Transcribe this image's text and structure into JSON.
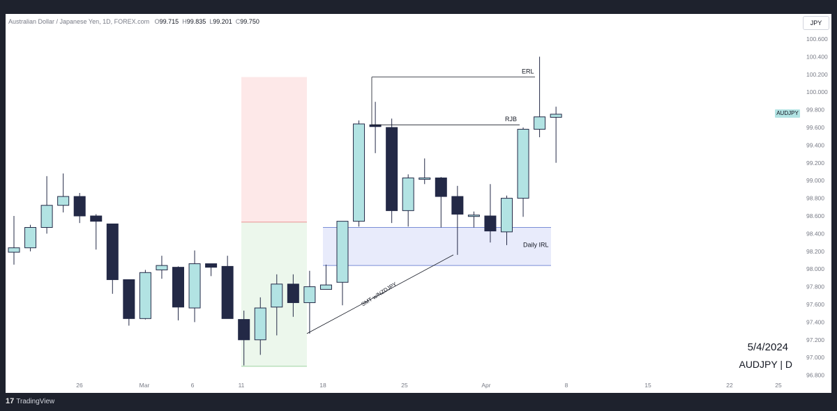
{
  "header": {
    "symbol_title": "Australian Dollar / Japanese Yen, 1D, FOREX.com",
    "open_label": "O",
    "open_value": "99.715",
    "high_label": "H",
    "high_value": "99.835",
    "low_label": "L",
    "low_value": "99.201",
    "close_label": "C",
    "close_value": "99.750"
  },
  "currency_button": "JPY",
  "last_price_tag": "AUDJPY",
  "watermark": {
    "date": "5/4/2024",
    "symbol": "AUDJPY | D"
  },
  "footer": {
    "brand_mark": "17",
    "brand": "TradingView"
  },
  "annotations": {
    "erl": "ERL",
    "rjb": "RJB",
    "daily_irl": "Daily IRL",
    "smt": "SMT w/NZDJPY"
  },
  "colors": {
    "bull_fill": "#b2e3e3",
    "bear_fill": "#232946",
    "candle_border": "#232946",
    "supply_zone": "#fde8e8",
    "demand_zone": "#ecf7ec",
    "irl_zone": "#e8ebfb",
    "irl_border": "#7b8ed6"
  },
  "chart_data": {
    "type": "candlestick",
    "y_axis_ticks": [
      "100.600",
      "100.400",
      "100.200",
      "100.000",
      "99.800",
      "99.600",
      "99.400",
      "99.200",
      "99.000",
      "98.800",
      "98.600",
      "98.400",
      "98.200",
      "98.000",
      "97.800",
      "97.600",
      "97.400",
      "97.200",
      "97.000",
      "96.800"
    ],
    "x_axis_ticks": [
      "26",
      "Mar",
      "6",
      "11",
      "18",
      "25",
      "Apr",
      "8",
      "15",
      "22",
      "25"
    ],
    "ylim": [
      96.75,
      100.75
    ],
    "candles": [
      {
        "o": 98.19,
        "h": 98.6,
        "l": 98.05,
        "c": 98.24
      },
      {
        "o": 98.24,
        "h": 98.5,
        "l": 98.2,
        "c": 98.47
      },
      {
        "o": 98.47,
        "h": 99.05,
        "l": 98.4,
        "c": 98.72
      },
      {
        "o": 98.72,
        "h": 99.08,
        "l": 98.64,
        "c": 98.82
      },
      {
        "o": 98.82,
        "h": 98.86,
        "l": 98.52,
        "c": 98.6
      },
      {
        "o": 98.6,
        "h": 98.62,
        "l": 98.22,
        "c": 98.54
      },
      {
        "o": 98.51,
        "h": 98.51,
        "l": 97.72,
        "c": 97.88
      },
      {
        "o": 97.88,
        "h": 97.88,
        "l": 97.36,
        "c": 97.44
      },
      {
        "o": 97.44,
        "h": 97.99,
        "l": 97.43,
        "c": 97.96
      },
      {
        "o": 97.99,
        "h": 98.15,
        "l": 97.89,
        "c": 98.04
      },
      {
        "o": 98.02,
        "h": 98.03,
        "l": 97.42,
        "c": 97.57
      },
      {
        "o": 97.56,
        "h": 98.21,
        "l": 97.4,
        "c": 98.06
      },
      {
        "o": 98.06,
        "h": 98.06,
        "l": 97.92,
        "c": 98.02
      },
      {
        "o": 98.03,
        "h": 98.15,
        "l": 97.45,
        "c": 97.44
      },
      {
        "o": 97.43,
        "h": 97.53,
        "l": 96.91,
        "c": 97.2
      },
      {
        "o": 97.2,
        "h": 97.68,
        "l": 97.03,
        "c": 97.56
      },
      {
        "o": 97.57,
        "h": 97.94,
        "l": 97.25,
        "c": 97.83
      },
      {
        "o": 97.83,
        "h": 97.94,
        "l": 97.46,
        "c": 97.62
      },
      {
        "o": 97.62,
        "h": 97.98,
        "l": 97.27,
        "c": 97.8
      },
      {
        "o": 97.77,
        "h": 98.05,
        "l": 97.77,
        "c": 97.82
      },
      {
        "o": 97.85,
        "h": 98.54,
        "l": 97.59,
        "c": 98.54
      },
      {
        "o": 98.54,
        "h": 99.68,
        "l": 98.48,
        "c": 99.64
      },
      {
        "o": 99.63,
        "h": 99.89,
        "l": 99.31,
        "c": 99.61
      },
      {
        "o": 99.6,
        "h": 99.7,
        "l": 98.52,
        "c": 98.66
      },
      {
        "o": 98.66,
        "h": 99.07,
        "l": 98.48,
        "c": 99.03
      },
      {
        "o": 99.02,
        "h": 99.25,
        "l": 98.96,
        "c": 99.03
      },
      {
        "o": 99.03,
        "h": 99.04,
        "l": 98.47,
        "c": 98.82
      },
      {
        "o": 98.82,
        "h": 98.94,
        "l": 98.16,
        "c": 98.62
      },
      {
        "o": 98.61,
        "h": 98.65,
        "l": 98.47,
        "c": 98.61
      },
      {
        "o": 98.6,
        "h": 98.96,
        "l": 98.3,
        "c": 98.43
      },
      {
        "o": 98.42,
        "h": 98.83,
        "l": 98.27,
        "c": 98.8
      },
      {
        "o": 98.8,
        "h": 99.6,
        "l": 98.59,
        "c": 99.58
      },
      {
        "o": 99.58,
        "h": 100.4,
        "l": 99.49,
        "c": 99.72
      },
      {
        "o": 99.715,
        "h": 99.835,
        "l": 99.201,
        "c": 99.75
      }
    ],
    "zones": [
      {
        "name": "supply",
        "y1": 98.53,
        "y2": 100.17,
        "from_candle": 14,
        "to_candle": 17
      },
      {
        "name": "demand",
        "y1": 96.9,
        "y2": 98.53,
        "from_candle": 14,
        "to_candle": 17
      },
      {
        "name": "daily-irl",
        "y1": 98.04,
        "y2": 98.47,
        "from_candle": 19,
        "to_candle": 33
      }
    ],
    "levels": [
      {
        "name": "ERL",
        "price": 100.17,
        "from_candle": 22,
        "to_candle": 32
      },
      {
        "name": "RJB",
        "price": 99.63,
        "from_candle": 22,
        "to_candle": 31
      }
    ],
    "smt_line": {
      "from_candle": 17,
      "from_price": 97.27,
      "to_candle": 27,
      "to_price": 98.16
    }
  }
}
